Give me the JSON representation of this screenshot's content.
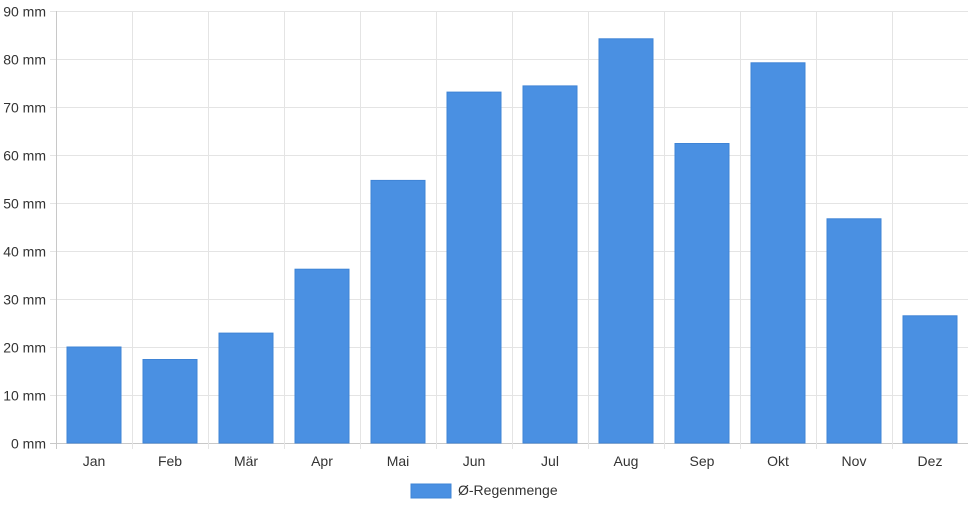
{
  "chart_data": {
    "type": "bar",
    "categories": [
      "Jan",
      "Feb",
      "Mär",
      "Apr",
      "Mai",
      "Jun",
      "Jul",
      "Aug",
      "Sep",
      "Okt",
      "Nov",
      "Dez"
    ],
    "series": [
      {
        "name": "Ø-Regenmenge",
        "color": "#4a90e2",
        "values": [
          20,
          17.4,
          22.9,
          36.2,
          54.7,
          73.1,
          74.4,
          84.2,
          62.4,
          79.2,
          46.7,
          26.5
        ]
      }
    ],
    "y_ticks": [
      "0 mm",
      "10 mm",
      "20 mm",
      "30 mm",
      "40 mm",
      "50 mm",
      "60 mm",
      "70 mm",
      "80 mm",
      "90 mm"
    ],
    "ylim": [
      0,
      90
    ],
    "ystep": 10,
    "grid": true,
    "legend_position": "bottom-center"
  }
}
